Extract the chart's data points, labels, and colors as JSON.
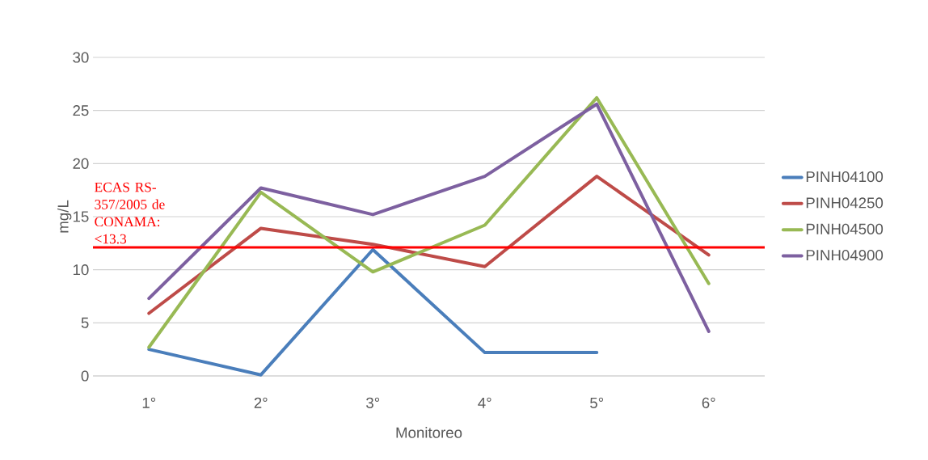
{
  "chart_data": {
    "type": "line",
    "xlabel": "Monitoreo",
    "ylabel": "mg/L",
    "categories": [
      "1°",
      "2°",
      "3°",
      "4°",
      "5°",
      "6°"
    ],
    "series": [
      {
        "name": "PINH04100",
        "color": "#4a7ebb",
        "values": [
          2.5,
          0.1,
          11.9,
          2.2,
          2.2,
          null
        ]
      },
      {
        "name": "PINH04250",
        "color": "#be4b48",
        "values": [
          5.9,
          13.9,
          12.4,
          10.3,
          18.8,
          11.4
        ]
      },
      {
        "name": "PINH04500",
        "color": "#98b954",
        "values": [
          2.7,
          17.3,
          9.8,
          14.2,
          26.2,
          8.7
        ]
      },
      {
        "name": "PINH04900",
        "color": "#7d60a0",
        "values": [
          7.3,
          17.7,
          15.2,
          18.8,
          25.6,
          4.2
        ]
      }
    ],
    "ylim": [
      0,
      30
    ],
    "yticks": [
      0,
      5,
      10,
      15,
      20,
      25,
      30
    ],
    "grid": "y",
    "legend": "right",
    "marker": "none",
    "line_style": "solid",
    "ref_lines": [
      {
        "axis": "y",
        "value": 12.1,
        "label": "ECAS RS-357/2005 de CONAMA: <13.3",
        "color": "#ff0000"
      }
    ]
  }
}
